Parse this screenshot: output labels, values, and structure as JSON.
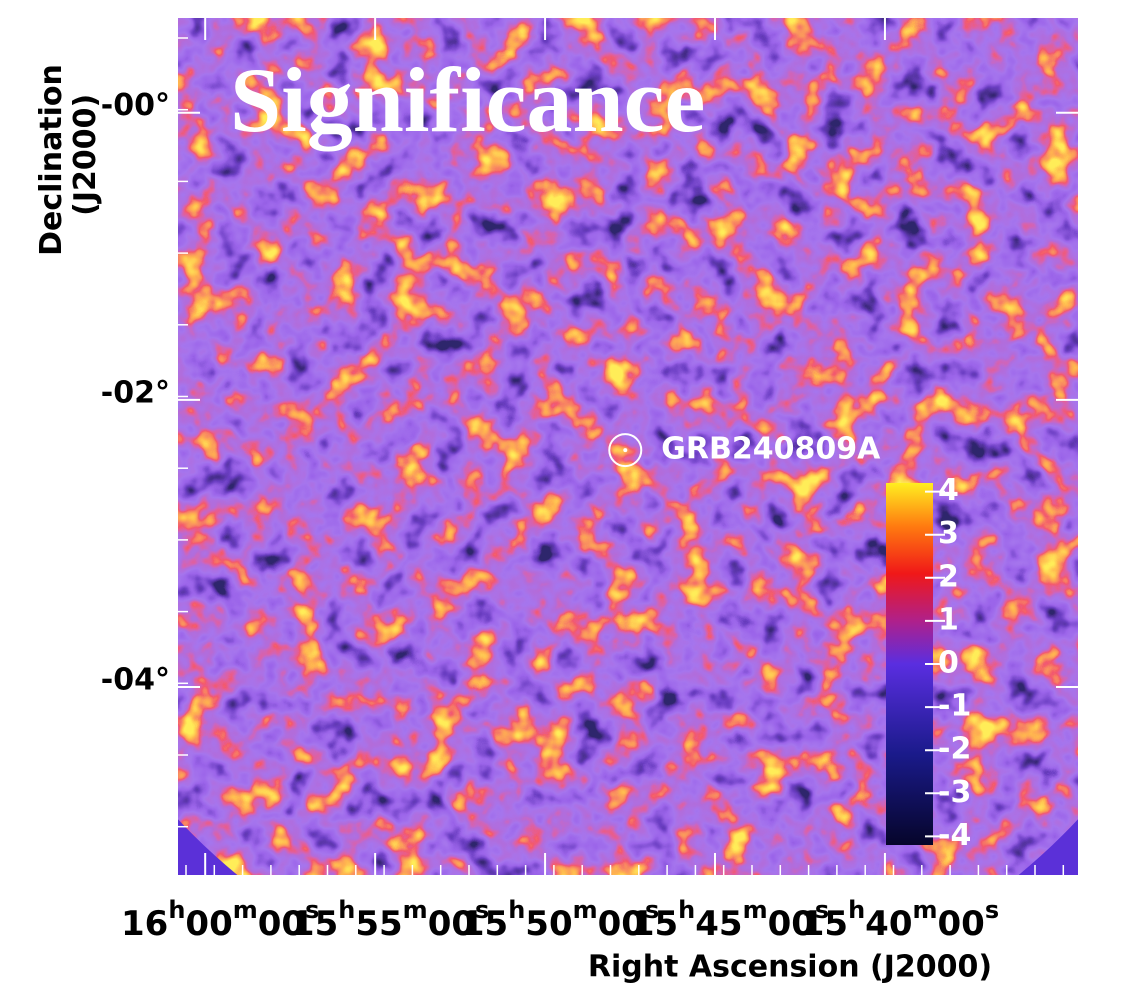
{
  "chart_data": {
    "type": "skymap",
    "title": "Significance",
    "x_label": "Right Ascension (J2000)",
    "y_label": "Declination (J2000)",
    "xlim": [
      240.2,
      233.58
    ],
    "xticks": [
      {
        "value": 240,
        "label": "16h00m00s"
      },
      {
        "value": 238.75,
        "label": "15h55m00s"
      },
      {
        "value": 237.5,
        "label": "15h50m00s"
      },
      {
        "value": 236.25,
        "label": "15h45m00s"
      },
      {
        "value": 235,
        "label": "15h40m00s"
      }
    ],
    "ylim": [
      -5.31,
      0.66
    ],
    "yticks": [
      {
        "value": 0,
        "label": "-00°"
      },
      {
        "value": -2,
        "label": "-02°"
      },
      {
        "value": -4,
        "label": "-04°"
      }
    ],
    "colorbar": {
      "lim": [
        -4.2,
        4.2
      ],
      "ticks": [
        4,
        3,
        2,
        1,
        0,
        -1,
        -2,
        -3,
        -4
      ]
    },
    "annotations": [
      {
        "text": "GRB240809A",
        "x": 236.91,
        "y": -2.35
      }
    ]
  }
}
